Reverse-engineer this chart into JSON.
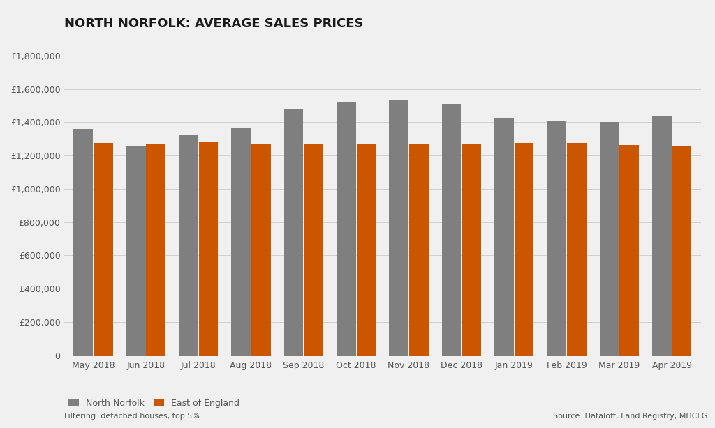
{
  "title": "NORTH NORFOLK: AVERAGE SALES PRICES",
  "categories": [
    "May 2018",
    "Jun 2018",
    "Jul 2018",
    "Aug 2018",
    "Sep 2018",
    "Oct 2018",
    "Nov 2018",
    "Dec 2018",
    "Jan 2019",
    "Feb 2019",
    "Mar 2019",
    "Apr 2019"
  ],
  "north_norfolk": [
    1360000,
    1255000,
    1325000,
    1365000,
    1475000,
    1520000,
    1530000,
    1510000,
    1425000,
    1410000,
    1400000,
    1435000
  ],
  "east_of_england": [
    1275000,
    1270000,
    1285000,
    1270000,
    1270000,
    1270000,
    1270000,
    1270000,
    1275000,
    1275000,
    1265000,
    1260000
  ],
  "north_norfolk_color": "#7f7f7f",
  "east_of_england_color": "#cc5500",
  "background_color": "#f0f0f0",
  "ylim": [
    0,
    1800000
  ],
  "yticks": [
    0,
    200000,
    400000,
    600000,
    800000,
    1000000,
    1200000,
    1400000,
    1600000,
    1800000
  ],
  "legend_labels": [
    "North Norfolk",
    "East of England"
  ],
  "footnote_left": "Filtering: detached houses, top 5%",
  "footnote_right": "Source: Dataloft, Land Registry, MHCLG",
  "title_fontsize": 13,
  "axis_label_fontsize": 9,
  "legend_fontsize": 9,
  "footnote_fontsize": 8
}
